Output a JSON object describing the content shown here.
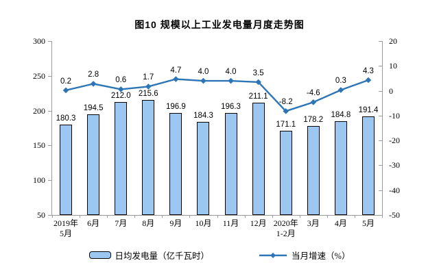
{
  "title": "图10 规模以上工业发电量月度走势图",
  "chart_data": {
    "type": "combo-bar-line",
    "title": "图10 规模以上工业发电量月度走势图",
    "categories": [
      "2019年\n5月",
      "6月",
      "7月",
      "8月",
      "9月",
      "10月",
      "11月",
      "12月",
      "2020年\n1-2月",
      "3月",
      "4月",
      "5月"
    ],
    "series": [
      {
        "name": "日均发电量（亿千瓦时）",
        "type": "bar",
        "axis": "left",
        "values": [
          180.3,
          194.5,
          212.0,
          215.6,
          196.9,
          184.3,
          196.3,
          211.1,
          171.1,
          178.2,
          184.8,
          191.4
        ],
        "labels": [
          "180.3",
          "194.5",
          "212.0",
          "215.6",
          "196.9",
          "184.3",
          "196.3",
          "211.1",
          "171.1",
          "178.2",
          "184.8",
          "191.4"
        ],
        "fill": "#9CC7F0",
        "stroke": "#000000"
      },
      {
        "name": "当月增速（%）",
        "type": "line",
        "axis": "right",
        "values": [
          0.2,
          2.8,
          0.6,
          1.7,
          4.7,
          4.0,
          4.0,
          3.5,
          -8.2,
          -4.6,
          0.3,
          4.3
        ],
        "labels": [
          "0.2",
          "2.8",
          "0.6",
          "1.7",
          "4.7",
          "4.0",
          "4.0",
          "3.5",
          "-8.2",
          "-4.6",
          "0.3",
          "4.3"
        ],
        "color": "#2E75B6"
      }
    ],
    "left_axis": {
      "min": 50,
      "max": 300,
      "step": 50,
      "ticks": [
        "50",
        "100",
        "150",
        "200",
        "250",
        "300"
      ]
    },
    "right_axis": {
      "min": -50,
      "max": 20,
      "step": 10,
      "ticks": [
        "-50",
        "-40",
        "-30",
        "-20",
        "-10",
        "0",
        "10",
        "20"
      ]
    },
    "grid": false,
    "legend_position": "bottom"
  }
}
